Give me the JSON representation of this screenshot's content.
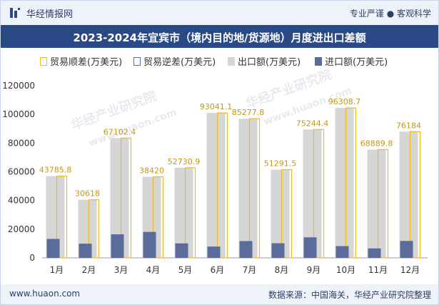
{
  "header": {
    "brand": "华经情报网",
    "slogan": "专业严谨 ● 客观科学"
  },
  "watermarks": [
    "华经产业研究院",
    "www.huaon.com",
    "华经产业研究院",
    "www.huaon.com"
  ],
  "legend": {
    "items": [
      {
        "label": "贸易顺差(万美元)"
      },
      {
        "label": "贸易逆差(万美元)"
      },
      {
        "label": "出口额(万美元)"
      },
      {
        "label": "进口额(万美元)"
      }
    ]
  },
  "footer": {
    "url": "www.huaon.com",
    "source": "数据来源：中国海关，华经产业研究院整理"
  },
  "colors": {
    "export": "#d6d6d6",
    "import": "#5b6b9a",
    "surplus_border": "#f0b91e",
    "deficit_border": "#4a6fb8",
    "title_bg": "#2a4a86"
  },
  "chart_data": {
    "type": "bar",
    "title": "2023-2024年宜宾市（境内目的地/货源地）月度进出口差额",
    "categories": [
      "1月",
      "2月",
      "3月",
      "4月",
      "5月",
      "6月",
      "7月",
      "8月",
      "9月",
      "10月",
      "11月",
      "12月"
    ],
    "ylim": [
      0,
      120000
    ],
    "yticks": [
      "0",
      "20000",
      "40000",
      "60000",
      "80000",
      "100000",
      "120000"
    ],
    "series": [
      {
        "name": "贸易顺差(万美元)",
        "values": [
          43785.8,
          30618,
          67102.4,
          38420,
          52730.9,
          93041.1,
          85277.8,
          51291.5,
          75244.4,
          96308.7,
          68889.8,
          76184
        ]
      },
      {
        "name": "贸易逆差(万美元)",
        "values": [
          0,
          0,
          0,
          0,
          0,
          0,
          0,
          0,
          0,
          0,
          0,
          0
        ]
      },
      {
        "name": "出口额(万美元)",
        "values": [
          57000,
          40500,
          83500,
          56500,
          62800,
          101000,
          97000,
          61500,
          89500,
          104500,
          75500,
          88000
        ]
      },
      {
        "name": "进口额(万美元)",
        "values": [
          13200,
          9900,
          16400,
          18100,
          10100,
          7900,
          11700,
          10200,
          14300,
          8200,
          6600,
          11800
        ]
      }
    ],
    "data_labels": [
      "43785.8",
      "30618",
      "67102.4",
      "38420",
      "52730.9",
      "93041.1",
      "85277.8",
      "51291.5",
      "75244.4",
      "96308.7",
      "68889.8",
      "76184"
    ]
  }
}
